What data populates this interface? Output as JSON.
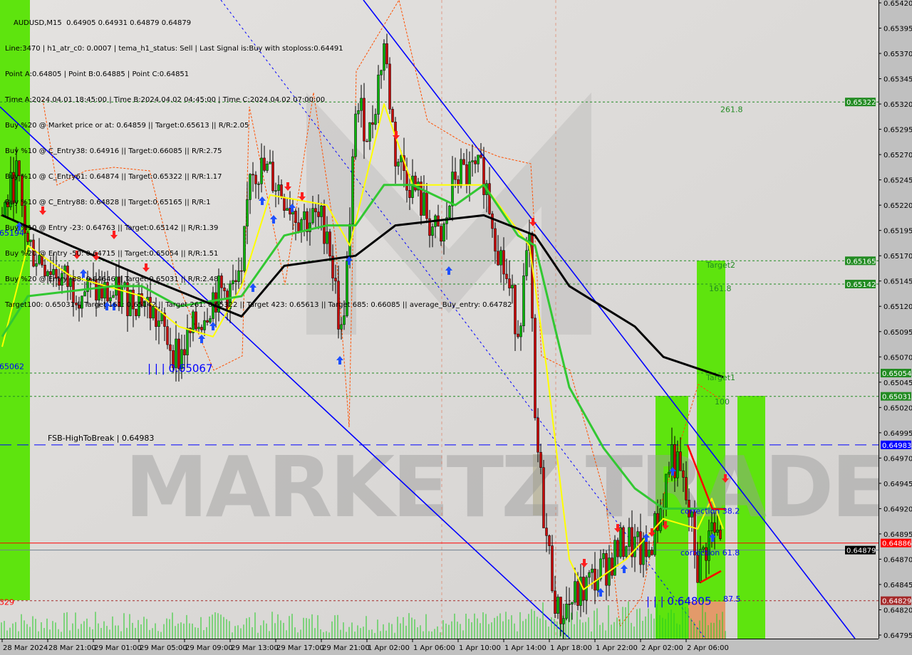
{
  "window": {
    "title": "AUDUSD,M15  0.64905 0.64931 0.64879 0.64879"
  },
  "info_lines": [
    "Line:3470 | h1_atr_c0: 0.0007 | tema_h1_status: Sell | Last Signal is:Buy with stoploss:0.64491",
    "Point A:0.64805 | Point B:0.64885 | Point C:0.64851",
    "Time A:2024.04.01 18:45:00 | Time B:2024.04.02 04:45:00 | Time C:2024.04.02 07:00:00",
    "Buy %20 @ Market price or at: 0.64859 || Target:0.65613 || R/R:2.05",
    "Buy %10 @ C_Entry38: 0.64916 || Target:0.66085 || R/R:2.75",
    "Buy %10 @ C_Entry61: 0.64874 || Target:0.65322 || R/R:1.17",
    "Buy %10 @ C_Entry88: 0.64828 || Target:0.65165 || R/R:1",
    "Buy %10 @ Entry -23: 0.64763 || Target:0.65142 || R/R:1.39",
    "Buy %20 @ Entry -50: 0.64715 || Target:0.65054 || R/R:1.51",
    "Buy %20 @ Entry -88: 0.64646 || Target:0.65031 || R/R:2.48",
    "Target100: 0.65031 || Target 161: 0.65142 || Target 261: 0.65322 || Target 423: 0.65613 || Target 685: 0.66085 || average_Buy_entry: 0.64782"
  ],
  "watermark": "MARKETZ TRADE",
  "colors": {
    "bg": "#dcdad8",
    "axis": "#c0c0c0",
    "zone_green": "#5ee40e",
    "zone_orange": "#e39a6a",
    "channel": "#0000ff",
    "ma_black": "#000000",
    "ma_green": "#32c832",
    "ma_yellow": "#ffff00",
    "bull": "#00b400",
    "bear": "#c80000"
  },
  "chart_data": {
    "type": "candlestick",
    "symbol": "AUDUSD",
    "timeframe": "M15",
    "ohlc_last": {
      "open": 0.64905,
      "high": 0.64931,
      "low": 0.64879,
      "close": 0.64879
    },
    "ylim": [
      0.64795,
      0.6542
    ],
    "y_ticks": [
      "0.65420",
      "0.65395",
      "0.65370",
      "0.65345",
      "0.65320",
      "0.65295",
      "0.65270",
      "0.65245",
      "0.65220",
      "0.65195",
      "0.65170",
      "0.65145",
      "0.65120",
      "0.65095",
      "0.65070",
      "0.65045",
      "0.65020",
      "0.64995",
      "0.64970",
      "0.64945",
      "0.64920",
      "0.64895",
      "0.64870",
      "0.64845",
      "0.64820",
      "0.64795"
    ],
    "x_ticks": [
      {
        "label": "28 Mar 2024",
        "t": "2024-03-28 17:00"
      },
      {
        "label": "28 Mar 21:00",
        "t": "2024-03-28 21:00"
      },
      {
        "label": "29 Mar 01:00",
        "t": "2024-03-29 01:00"
      },
      {
        "label": "29 Mar 05:00",
        "t": "2024-03-29 05:00"
      },
      {
        "label": "29 Mar 09:00",
        "t": "2024-03-29 09:00"
      },
      {
        "label": "29 Mar 13:00",
        "t": "2024-03-29 13:00"
      },
      {
        "label": "29 Mar 17:00",
        "t": "2024-03-29 17:00"
      },
      {
        "label": "29 Mar 21:00",
        "t": "2024-03-29 21:00"
      },
      {
        "label": "1 Apr 02:00",
        "t": "2024-04-01 02:00"
      },
      {
        "label": "1 Apr 06:00",
        "t": "2024-04-01 06:00"
      },
      {
        "label": "1 Apr 10:00",
        "t": "2024-04-01 10:00"
      },
      {
        "label": "1 Apr 14:00",
        "t": "2024-04-01 14:00"
      },
      {
        "label": "1 Apr 18:00",
        "t": "2024-04-01 18:00"
      },
      {
        "label": "1 Apr 22:00",
        "t": "2024-04-01 22:00"
      },
      {
        "label": "2 Apr 02:00",
        "t": "2024-04-02 02:00"
      },
      {
        "label": "2 Apr 06:00",
        "t": "2024-04-02 06:00"
      }
    ],
    "price_path": [
      [
        "2024-03-28 17:00",
        0.6521
      ],
      [
        "2024-03-28 18:15",
        0.6525
      ],
      [
        "2024-03-28 19:15",
        0.6518
      ],
      [
        "2024-03-28 23:00",
        0.6514
      ],
      [
        "2024-03-29 02:45",
        0.6513
      ],
      [
        "2024-03-29 05:15",
        0.6513
      ],
      [
        "2024-03-29 08:30",
        0.6507
      ],
      [
        "2024-03-29 11:30",
        0.6513
      ],
      [
        "2024-03-29 14:00",
        0.6514
      ],
      [
        "2024-03-29 14:45",
        0.6526
      ],
      [
        "2024-03-29 16:30",
        0.6525
      ],
      [
        "2024-03-29 19:00",
        0.6521
      ],
      [
        "2024-03-29 21:30",
        0.652
      ],
      [
        "2024-03-29 22:45",
        0.6509
      ],
      [
        "2024-04-01 00:30",
        0.6519
      ],
      [
        "2024-04-01 01:00",
        0.6532
      ],
      [
        "2024-04-01 02:15",
        0.6529
      ],
      [
        "2024-04-01 03:30",
        0.6538
      ],
      [
        "2024-04-01 04:30",
        0.6527
      ],
      [
        "2024-04-01 06:00",
        0.6524
      ],
      [
        "2024-04-01 08:30",
        0.6518
      ],
      [
        "2024-04-01 09:45",
        0.6525
      ],
      [
        "2024-04-01 12:15",
        0.6525
      ],
      [
        "2024-04-01 13:30",
        0.6518
      ],
      [
        "2024-04-01 15:15",
        0.651
      ],
      [
        "2024-04-01 16:15",
        0.6518
      ],
      [
        "2024-04-01 16:45",
        0.65
      ],
      [
        "2024-04-01 17:45",
        0.6489
      ],
      [
        "2024-04-01 18:45",
        0.64815
      ],
      [
        "2024-04-01 21:00",
        0.6484
      ],
      [
        "2024-04-01 22:45",
        0.6486
      ],
      [
        "2024-04-02 00:45",
        0.6489
      ],
      [
        "2024-04-02 02:30",
        0.6487
      ],
      [
        "2024-04-02 03:45",
        0.6492
      ],
      [
        "2024-04-02 04:45",
        0.64975
      ],
      [
        "2024-04-02 05:45",
        0.6494
      ],
      [
        "2024-04-02 06:30",
        0.649
      ],
      [
        "2024-04-02 07:00",
        0.6486
      ],
      [
        "2024-04-02 08:15",
        0.649
      ],
      [
        "2024-04-02 09:15",
        0.64879
      ]
    ],
    "ma_black": [
      [
        "2024-03-28 17:00",
        0.6521
      ],
      [
        "2024-03-28 23:00",
        0.6518
      ],
      [
        "2024-03-29 05:15",
        0.6515
      ],
      [
        "2024-03-29 14:00",
        0.6511
      ],
      [
        "2024-03-29 17:45",
        0.6516
      ],
      [
        "2024-04-01 01:00",
        0.6517
      ],
      [
        "2024-04-01 04:30",
        0.652
      ],
      [
        "2024-04-01 12:15",
        0.6521
      ],
      [
        "2024-04-01 16:45",
        0.6519
      ],
      [
        "2024-04-01 19:45",
        0.6514
      ],
      [
        "2024-04-02 01:30",
        0.651
      ],
      [
        "2024-04-02 04:00",
        0.6507
      ],
      [
        "2024-04-02 09:15",
        0.6505
      ]
    ],
    "ma_green": [
      [
        "2024-03-28 17:00",
        0.6509
      ],
      [
        "2024-03-28 19:15",
        0.6513
      ],
      [
        "2024-03-29 02:45",
        0.6514
      ],
      [
        "2024-03-29 05:15",
        0.6514
      ],
      [
        "2024-03-29 08:30",
        0.6512
      ],
      [
        "2024-03-29 14:00",
        0.6513
      ],
      [
        "2024-03-29 17:45",
        0.6519
      ],
      [
        "2024-03-29 21:30",
        0.652
      ],
      [
        "2024-04-01 01:00",
        0.652
      ],
      [
        "2024-04-01 03:30",
        0.6524
      ],
      [
        "2024-04-01 06:00",
        0.6524
      ],
      [
        "2024-04-01 09:45",
        0.6522
      ],
      [
        "2024-04-01 12:15",
        0.6524
      ],
      [
        "2024-04-01 15:15",
        0.6519
      ],
      [
        "2024-04-01 16:45",
        0.6518
      ],
      [
        "2024-04-01 18:15",
        0.6511
      ],
      [
        "2024-04-01 19:45",
        0.6504
      ],
      [
        "2024-04-01 22:45",
        0.6498
      ],
      [
        "2024-04-02 01:30",
        0.6494
      ],
      [
        "2024-04-02 04:00",
        0.6492
      ],
      [
        "2024-04-02 09:15",
        0.6492
      ]
    ],
    "ma_yellow": [
      [
        "2024-03-28 17:00",
        0.6508
      ],
      [
        "2024-03-28 19:15",
        0.6518
      ],
      [
        "2024-03-28 23:00",
        0.6515
      ],
      [
        "2024-03-29 05:15",
        0.6513
      ],
      [
        "2024-03-29 08:30",
        0.651
      ],
      [
        "2024-03-29 11:30",
        0.6509
      ],
      [
        "2024-03-29 14:00",
        0.6514
      ],
      [
        "2024-03-29 16:30",
        0.6523
      ],
      [
        "2024-03-29 21:30",
        0.6522
      ],
      [
        "2024-04-01 00:30",
        0.6518
      ],
      [
        "2024-04-01 03:30",
        0.6532
      ],
      [
        "2024-04-01 06:00",
        0.6524
      ],
      [
        "2024-04-01 12:15",
        0.6524
      ],
      [
        "2024-04-01 16:15",
        0.6518
      ],
      [
        "2024-04-01 17:45",
        0.6506
      ],
      [
        "2024-04-01 19:45",
        0.6487
      ],
      [
        "2024-04-01 21:00",
        0.6484
      ],
      [
        "2024-04-02 00:45",
        0.6487
      ],
      [
        "2024-04-02 04:00",
        0.6491
      ],
      [
        "2024-04-02 07:00",
        0.649
      ],
      [
        "2024-04-02 08:15",
        0.6493
      ],
      [
        "2024-04-02 09:15",
        0.649
      ]
    ],
    "levels": [
      {
        "price": 0.65322,
        "label": "0.65322",
        "style": "dotted",
        "color": "#228b22"
      },
      {
        "price": 0.65165,
        "label": "0.65165",
        "style": "dotted",
        "color": "#228b22"
      },
      {
        "price": 0.65142,
        "label": "0.65142",
        "style": "dotted",
        "color": "#228b22"
      },
      {
        "price": 0.65054,
        "label": "0.65054",
        "style": "dotted",
        "color": "#228b22"
      },
      {
        "price": 0.65031,
        "label": "0.65031",
        "style": "dotted",
        "color": "#228b22"
      },
      {
        "price": 0.64983,
        "label": "0.64983",
        "style": "dashed",
        "color": "#0000ff"
      },
      {
        "price": 0.64886,
        "label": "0.64886",
        "style": "solid",
        "color": "#ff0000"
      },
      {
        "price": 0.64879,
        "label": "0.64879",
        "style": "solid",
        "color": "#708090",
        "tag": "#000000"
      },
      {
        "price": 0.64829,
        "label": "0.64829",
        "style": "dotted",
        "color": "#a52a2a"
      }
    ],
    "annotations": [
      {
        "text": "261.8",
        "t": "2024-04-02 09:00",
        "price": 0.65312,
        "color": "#228b22"
      },
      {
        "text": "Target2",
        "t": "2024-04-02 07:45",
        "price": 0.65158,
        "color": "#228b22"
      },
      {
        "text": "161.8",
        "t": "2024-04-02 08:00",
        "price": 0.65135,
        "color": "#228b22"
      },
      {
        "text": "Target1",
        "t": "2024-04-02 07:45",
        "price": 0.65047,
        "color": "#228b22"
      },
      {
        "text": "100",
        "t": "2024-04-02 08:30",
        "price": 0.65023,
        "color": "#228b22"
      },
      {
        "text": "correction 38.2",
        "t": "2024-04-02 05:30",
        "price": 0.64915,
        "color": "#0000ff"
      },
      {
        "text": "correction 61.8",
        "t": "2024-04-02 05:30",
        "price": 0.64874,
        "color": "#0000ff"
      },
      {
        "text": "| | | 0.64805",
        "t": "2024-04-02 02:30",
        "price": 0.64825,
        "color": "#0000ff"
      },
      {
        "text": "87.5",
        "t": "2024-04-02 09:15",
        "price": 0.64828,
        "color": "#0000ff"
      },
      {
        "text": "| | | 0.65067",
        "t": "2024-03-29 05:45",
        "price": 0.65055,
        "color": "#0000ff"
      },
      {
        "text": "FSB-HighToBreak | 0.64983",
        "t": "2024-03-28 21:00",
        "price": 0.64987,
        "color": "#000000"
      },
      {
        "text": "65194",
        "t": "2024-03-28 16:45",
        "price": 0.6519,
        "color": "#0000ff"
      },
      {
        "text": "65062",
        "t": "2024-03-28 16:45",
        "price": 0.65058,
        "color": "#0000ff"
      },
      {
        "text": "329",
        "t": "2024-03-28 16:45",
        "price": 0.64825,
        "color": "#ff0000"
      }
    ]
  }
}
